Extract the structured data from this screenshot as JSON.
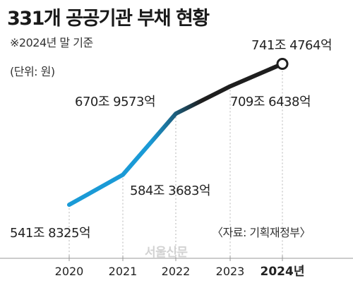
{
  "chart_data": {
    "type": "line",
    "title": "331개 공공기관 부채 현황",
    "subtitle": "※2024년 말 기준",
    "unit": "(단위: 원)",
    "source": "〈자료: 기획재정부〉",
    "watermark": "서울신문",
    "x": [
      "2020",
      "2021",
      "2022",
      "2023",
      "2024년"
    ],
    "values": [
      5418325,
      5843683,
      6709573,
      7096438,
      7414764
    ],
    "value_unit": "억원",
    "data_labels": [
      "541조 8325억",
      "584조 3683억",
      "670조 9573억",
      "709조 6438억",
      "741조 4764억"
    ],
    "ylim": [
      5300000,
      7500000
    ],
    "grid": false,
    "legend": "none",
    "colors": {
      "start": "#1a9ad6",
      "end": "#1e1e1e",
      "marker_fill": "#ffffff"
    }
  }
}
